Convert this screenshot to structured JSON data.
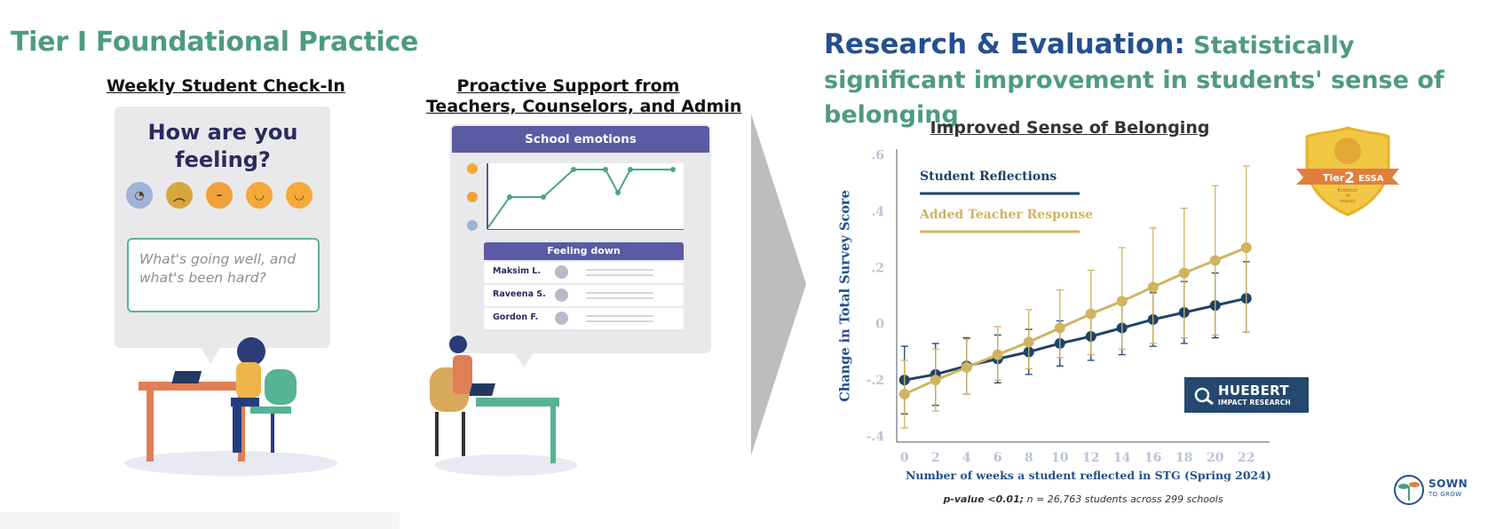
{
  "left": {
    "title": "Tier I Foundational Practice",
    "checkin_heading": "Weekly Student Check-In",
    "checkin_question": "How are you feeling?",
    "checkin_prompt_line1": "What's going well, and",
    "checkin_prompt_line2": "what's been hard?",
    "support_heading_line1": "Proactive Support from",
    "support_heading_line2": "Teachers, Counselors, and  Admin",
    "support_card_title": "School emotions",
    "feeling_down_title": "Feeling down",
    "students": [
      "Maksim L.",
      "Raveena S.",
      "Gordon F."
    ],
    "emoji_colors": [
      "#9fb3d8",
      "#d8a63e",
      "#f0a03a",
      "#f3a838",
      "#f5a93b"
    ],
    "mini_chart_line_color": "#4aa58a"
  },
  "right": {
    "title_main": "Research & Evaluation:",
    "title_rest": " Statistically significant improvement in students' sense of belonging",
    "footnote_bold": "p-value <0.01;",
    "footnote_rest": " n = 26,763 students across 299 schools",
    "badge": {
      "tier_word": "Tier",
      "tier_num": "2",
      "essa": "ESSA",
      "subtitle_line1": "Evidence",
      "subtitle_line2": "of",
      "subtitle_line3": "Impact"
    },
    "huebert_line1": "HUEBERT",
    "huebert_line2": "IMPACT RESEARCH",
    "sown_line1": "SOWN",
    "sown_line2": "TO GROW"
  },
  "chart_data": {
    "type": "line",
    "title": "Improved Sense of Belonging",
    "xlabel": "Number of weeks a student reflected in STG (Spring 2024)",
    "ylabel": "Change in Total Survey Score",
    "x": [
      0,
      2,
      4,
      6,
      8,
      10,
      12,
      14,
      16,
      18,
      20,
      22
    ],
    "x_tick_labels": [
      "0",
      "2",
      "4",
      "6",
      "8",
      "10",
      "12",
      "14",
      "16",
      "18",
      "20",
      "22"
    ],
    "y_ticks": [
      0.6,
      0.4,
      0.2,
      0,
      -0.2,
      -0.4
    ],
    "y_tick_labels": [
      ".6",
      ".4",
      ".2",
      "0",
      "-.2",
      "-.4"
    ],
    "ylim": [
      -0.42,
      0.62
    ],
    "xlim": [
      -0.5,
      23.5
    ],
    "legend_position": "top-left",
    "series": [
      {
        "name": "Student Reflections",
        "color": "#1e4366",
        "values": [
          -0.2,
          -0.18,
          -0.15,
          -0.125,
          -0.1,
          -0.07,
          -0.045,
          -0.015,
          0.015,
          0.04,
          0.065,
          0.09
        ],
        "error_low": [
          -0.32,
          -0.29,
          -0.25,
          -0.21,
          -0.18,
          -0.15,
          -0.13,
          -0.11,
          -0.08,
          -0.07,
          -0.05,
          -0.03
        ],
        "error_high": [
          -0.08,
          -0.07,
          -0.05,
          -0.04,
          -0.02,
          0.01,
          0.035,
          0.07,
          0.11,
          0.15,
          0.18,
          0.22
        ]
      },
      {
        "name": "Added Teacher Response",
        "color": "#cfb461",
        "values": [
          -0.25,
          -0.2,
          -0.155,
          -0.11,
          -0.065,
          -0.015,
          0.035,
          0.08,
          0.13,
          0.18,
          0.225,
          0.27
        ],
        "error_low": [
          -0.37,
          -0.31,
          -0.25,
          -0.2,
          -0.16,
          -0.12,
          -0.11,
          -0.09,
          -0.07,
          -0.05,
          -0.04,
          -0.03
        ],
        "error_high": [
          -0.13,
          -0.09,
          -0.055,
          -0.01,
          0.05,
          0.12,
          0.19,
          0.27,
          0.34,
          0.41,
          0.49,
          0.56
        ]
      }
    ]
  }
}
